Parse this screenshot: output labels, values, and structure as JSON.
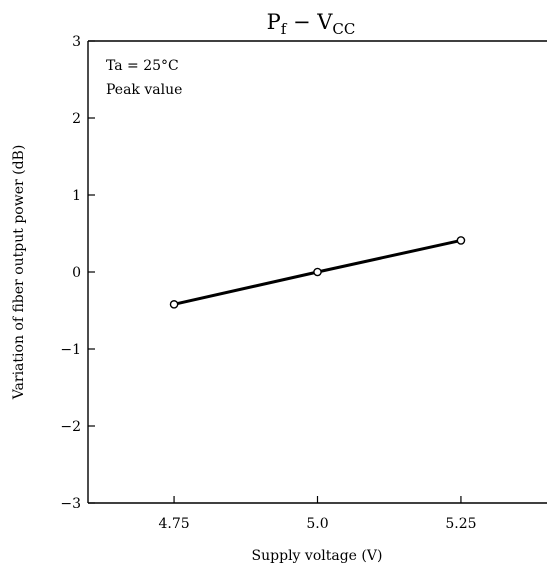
{
  "chart_data": {
    "type": "line",
    "title": {
      "text": "Pf − VCC",
      "parts": [
        {
          "text": "P",
          "sub": false
        },
        {
          "text": "f",
          "sub": true
        },
        {
          "text": " − ",
          "sub": false
        },
        {
          "text": "V",
          "sub": false
        },
        {
          "text": "CC",
          "sub": true
        }
      ]
    },
    "xlabel": "Supply voltage   (V)",
    "ylabel": "Variation of fiber output power   (dB)",
    "xlim": [
      4.6,
      5.4
    ],
    "ylim": [
      -3,
      3
    ],
    "x_ticks": [
      {
        "value": 4.75,
        "label": "4.75"
      },
      {
        "value": 5.0,
        "label": "5.0"
      },
      {
        "value": 5.25,
        "label": "5.25"
      }
    ],
    "y_ticks": [
      {
        "value": 3,
        "label": "3"
      },
      {
        "value": 2,
        "label": "2"
      },
      {
        "value": 1,
        "label": "1"
      },
      {
        "value": 0,
        "label": "0"
      },
      {
        "value": -1,
        "label": "−1"
      },
      {
        "value": -2,
        "label": "−2"
      },
      {
        "value": -3,
        "label": "−3"
      }
    ],
    "annotations": [
      "Ta = 25°C",
      "Peak value"
    ],
    "grid": false,
    "series": [
      {
        "x": [
          4.75,
          5.0,
          5.25
        ],
        "y": [
          -0.42,
          0.0,
          0.41
        ],
        "marker": "open-circle",
        "color": "#000000"
      }
    ]
  }
}
